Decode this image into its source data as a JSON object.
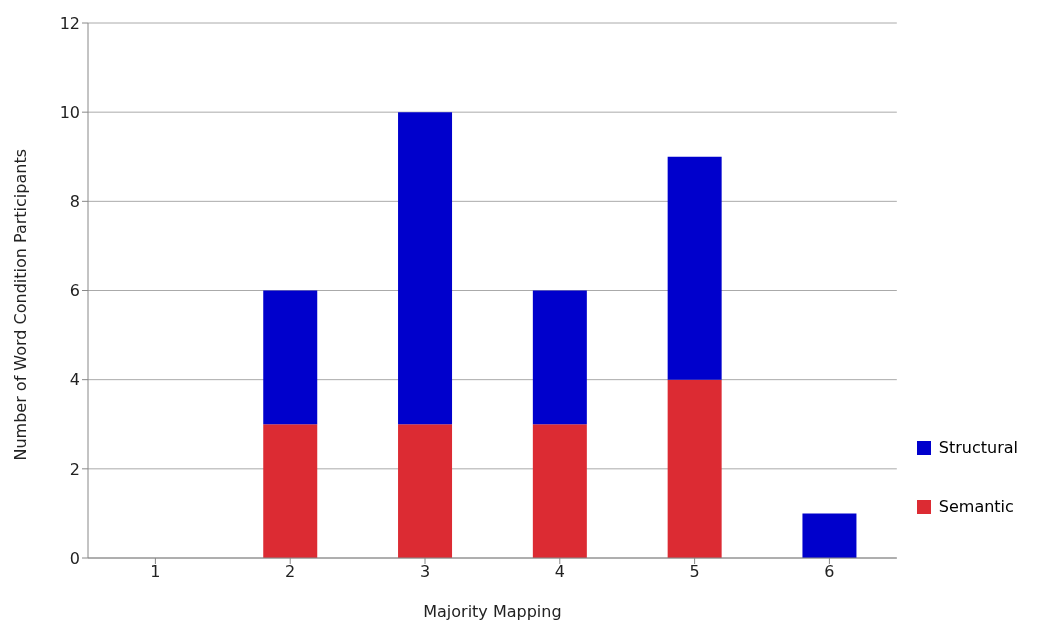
{
  "chart_data": {
    "type": "bar",
    "stacked": true,
    "xlabel": "Majority Mapping",
    "ylabel": "Number of Word Condition Participants",
    "categories": [
      "1",
      "2",
      "3",
      "4",
      "5",
      "6"
    ],
    "series": [
      {
        "name": "Semantic",
        "color": "#dc2b33",
        "values": [
          0,
          3,
          3,
          3,
          4,
          0
        ]
      },
      {
        "name": "Structural",
        "color": "#0000cc",
        "values": [
          0,
          3,
          7,
          3,
          5,
          1
        ]
      }
    ],
    "ylim": [
      0,
      12
    ],
    "yticks": [
      0,
      2,
      4,
      6,
      8,
      10,
      12
    ],
    "grid": "y",
    "legend": "right"
  }
}
